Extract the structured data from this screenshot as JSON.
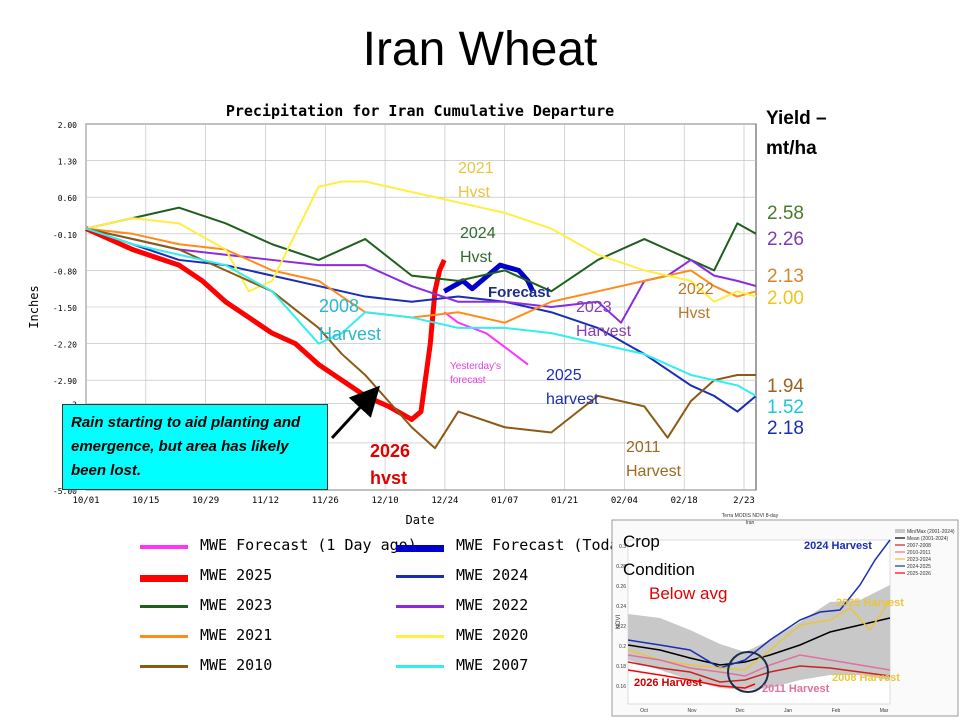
{
  "slide_title": "Iran Wheat",
  "yield_header": "Yield –\nmt/ha",
  "yield_values": [
    {
      "text": "2.58",
      "color": "#4b7a2b",
      "y": 215
    },
    {
      "text": "2.26",
      "color": "#7a3db0",
      "y": 241
    },
    {
      "text": "2.13",
      "color": "#d4862a",
      "y": 278
    },
    {
      "text": "2.00",
      "color": "#f0c419",
      "y": 300
    },
    {
      "text": "1.94",
      "color": "#9b6220",
      "y": 388
    },
    {
      "text": "1.52",
      "color": "#1ec7d6",
      "y": 409
    },
    {
      "text": "2.18",
      "color": "#1a2db5",
      "y": 430
    }
  ],
  "annotations": {
    "y2021": "2021\nHvst",
    "y2024": "2024\nHvst",
    "forecast": "Forecast",
    "y2023": "2023\nHarvest",
    "y2022": "2022\nHvst",
    "y2008": "2008\nHarvest",
    "yesterday": "Yesterday's\nforecast",
    "y2025": "2025\nharvest",
    "y2011": "2011\nHarvest",
    "y2026": "2026\nhvst"
  },
  "callout": "Rain starting to aid planting and emergence, but area has likely been lost.",
  "legend": [
    {
      "label": "MWE Forecast (1 Day ago)",
      "color": "#ff33ff",
      "width": 3
    },
    {
      "label": "MWE Forecast (Toda",
      "color": "#0000cc",
      "width": 6
    },
    {
      "label": "MWE 2025",
      "color": "#ff0000",
      "width": 6
    },
    {
      "label": "MWE 2024",
      "color": "#1a2db5",
      "width": 2
    },
    {
      "label": "MWE 2023",
      "color": "#1f5f1f",
      "width": 2
    },
    {
      "label": "MWE 2022",
      "color": "#8a2be2",
      "width": 2
    },
    {
      "label": "MWE 2021",
      "color": "#ff8c1a",
      "width": 2
    },
    {
      "label": "MWE 2020",
      "color": "#ffee44",
      "width": 2
    },
    {
      "label": "MWE 2010",
      "color": "#8b5a14",
      "width": 2
    },
    {
      "label": "MWE 2007",
      "color": "#33eeee",
      "width": 2
    }
  ],
  "inset": {
    "crop": "Crop\nCondition",
    "below": "Below avg",
    "h2024": "2024 Harvest",
    "h2025": "2025 Harvest",
    "h2026": "2026 Harvest",
    "h2011": "2011 Harvest",
    "h2008": "2008 Harvest",
    "subtitle": "Terra MODIS NDVI 8-day\nIran",
    "ylabel": "NDVI",
    "x_ticks": [
      "Oct",
      "Nov",
      "Dec",
      "Jan",
      "Feb",
      "Mar"
    ],
    "y_ticks": [
      "0.3",
      "0.28",
      "0.26",
      "0.24",
      "0.22",
      "0.2",
      "0.18",
      "0.16"
    ],
    "legend": [
      "Min/Max (2001-2024)",
      "Mean (2001-2024)",
      "2007-2008",
      "2010-2011",
      "2023-2024",
      "2024-2025",
      "2025-2026"
    ]
  },
  "chart_data": {
    "type": "line",
    "title": "Precipitation for Iran Cumulative Departure",
    "xlabel": "Date",
    "ylabel": "Inches",
    "ylim": [
      -5.0,
      2.0
    ],
    "y_ticks": [
      "2.00",
      "1.30",
      "0.60",
      "-0.10",
      "-0.80",
      "-1.50",
      "-2.20",
      "-2.90",
      "-3",
      "-4",
      "-5.00"
    ],
    "x_ticks": [
      "10/01",
      "10/15",
      "10/29",
      "11/12",
      "11/26",
      "12/10",
      "12/24",
      "01/07",
      "01/21",
      "02/04",
      "02/18",
      "2/23"
    ],
    "x": [
      0,
      8,
      16,
      24,
      32,
      40,
      48,
      56,
      64,
      72,
      80,
      88,
      96,
      104,
      112,
      120,
      128,
      136,
      144
    ],
    "series": [
      {
        "name": "MWE 2025",
        "color": "#ff0000",
        "width": 5,
        "x": [
          0,
          5,
          10,
          15,
          20,
          25,
          30,
          35,
          40,
          45,
          50,
          55,
          60,
          65,
          70,
          72,
          74,
          75,
          76,
          77
        ],
        "values": [
          0.0,
          -0.2,
          -0.4,
          -0.55,
          -0.7,
          -1.0,
          -1.4,
          -1.7,
          -2.0,
          -2.2,
          -2.6,
          -2.9,
          -3.2,
          -3.4,
          -3.65,
          -3.5,
          -2.2,
          -1.2,
          -0.8,
          -0.6
        ]
      },
      {
        "name": "MWE Forecast (Toda",
        "color": "#0000cc",
        "width": 5,
        "x": [
          77,
          79,
          81,
          83,
          85,
          87,
          89,
          91,
          93,
          95,
          96
        ],
        "values": [
          -1.2,
          -1.1,
          -1.0,
          -1.15,
          -1.0,
          -0.85,
          -0.7,
          -0.75,
          -0.8,
          -1.0,
          -1.2
        ]
      },
      {
        "name": "MWE Forecast (1 Day ago)",
        "color": "#ff33ff",
        "width": 2,
        "x": [
          77,
          80,
          83,
          86,
          89,
          92,
          95
        ],
        "values": [
          -1.6,
          -1.8,
          -1.9,
          -2.0,
          -2.2,
          -2.4,
          -2.6
        ]
      },
      {
        "name": "MWE 2024",
        "color": "#1a2db5",
        "width": 2,
        "x": [
          0,
          10,
          20,
          30,
          40,
          50,
          60,
          70,
          80,
          90,
          100,
          110,
          120,
          130,
          135,
          140,
          144
        ],
        "values": [
          0.0,
          -0.3,
          -0.6,
          -0.7,
          -0.9,
          -1.1,
          -1.3,
          -1.4,
          -1.3,
          -1.4,
          -1.6,
          -1.9,
          -2.4,
          -3.0,
          -3.2,
          -3.5,
          -3.2
        ]
      },
      {
        "name": "MWE 2023",
        "color": "#1f5f1f",
        "width": 2,
        "x": [
          0,
          10,
          20,
          30,
          40,
          50,
          60,
          70,
          80,
          90,
          100,
          110,
          120,
          125,
          130,
          135,
          140,
          144
        ],
        "values": [
          0.0,
          0.2,
          0.4,
          0.1,
          -0.3,
          -0.6,
          -0.2,
          -0.9,
          -1.0,
          -0.8,
          -1.2,
          -0.6,
          -0.2,
          -0.4,
          -0.6,
          -0.8,
          0.1,
          -0.1
        ]
      },
      {
        "name": "MWE 2022",
        "color": "#8a2be2",
        "width": 2,
        "x": [
          0,
          10,
          20,
          30,
          40,
          50,
          60,
          70,
          80,
          90,
          100,
          110,
          115,
          120,
          125,
          130,
          135,
          140,
          144
        ],
        "values": [
          0.0,
          -0.2,
          -0.4,
          -0.5,
          -0.6,
          -0.7,
          -0.7,
          -1.1,
          -1.4,
          -1.4,
          -1.5,
          -1.4,
          -1.8,
          -1.0,
          -0.9,
          -0.6,
          -0.9,
          -1.0,
          -1.1
        ]
      },
      {
        "name": "MWE 2021",
        "color": "#ff8c1a",
        "width": 2,
        "x": [
          0,
          10,
          20,
          30,
          40,
          50,
          60,
          70,
          80,
          90,
          100,
          110,
          120,
          130,
          135,
          140,
          144
        ],
        "values": [
          0.0,
          -0.1,
          -0.3,
          -0.4,
          -0.8,
          -1.0,
          -1.6,
          -1.7,
          -1.6,
          -1.8,
          -1.4,
          -1.2,
          -1.0,
          -0.8,
          -1.1,
          -1.3,
          -1.2
        ]
      },
      {
        "name": "MWE 2020",
        "color": "#ffee44",
        "width": 2,
        "x": [
          0,
          10,
          20,
          30,
          35,
          40,
          45,
          50,
          55,
          60,
          70,
          80,
          90,
          100,
          110,
          120,
          130,
          135,
          140,
          144
        ],
        "values": [
          0.0,
          0.2,
          0.1,
          -0.4,
          -1.2,
          -1.0,
          -0.1,
          0.8,
          0.9,
          0.9,
          0.7,
          0.5,
          0.3,
          0.0,
          -0.5,
          -0.8,
          -1.0,
          -1.4,
          -1.2,
          -1.3
        ]
      },
      {
        "name": "MWE 2010",
        "color": "#8b5a14",
        "width": 2,
        "x": [
          0,
          10,
          20,
          30,
          40,
          50,
          55,
          60,
          65,
          70,
          75,
          80,
          90,
          100,
          110,
          120,
          125,
          130,
          135,
          140,
          144
        ],
        "values": [
          0.0,
          -0.2,
          -0.4,
          -0.8,
          -1.2,
          -1.9,
          -2.4,
          -2.8,
          -3.3,
          -3.8,
          -4.2,
          -3.5,
          -3.8,
          -3.9,
          -3.2,
          -3.4,
          -4.0,
          -3.3,
          -2.9,
          -2.8,
          -2.8
        ]
      },
      {
        "name": "MWE 2007",
        "color": "#33eeee",
        "width": 2,
        "x": [
          0,
          10,
          20,
          30,
          40,
          45,
          50,
          55,
          60,
          70,
          80,
          90,
          100,
          110,
          120,
          130,
          140,
          144
        ],
        "values": [
          0.0,
          -0.3,
          -0.5,
          -0.7,
          -1.2,
          -1.7,
          -2.2,
          -2.0,
          -1.6,
          -1.7,
          -1.9,
          -1.9,
          -2.0,
          -2.2,
          -2.4,
          -2.8,
          -3.0,
          -3.2
        ]
      }
    ]
  }
}
